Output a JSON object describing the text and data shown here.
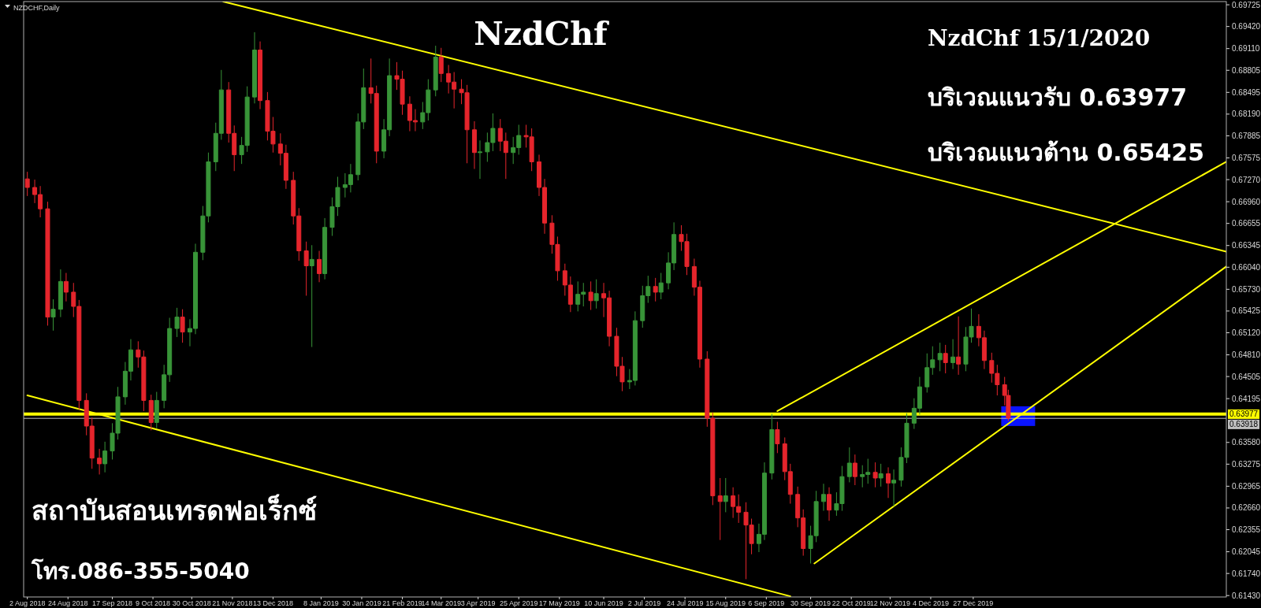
{
  "chart_data": {
    "type": "candlestick",
    "title": "NzdChf",
    "annotations": [
      "NZDCHF,Daily",
      "NzdChf 15/1/2020",
      "บริเวณแนวรับ 0.63977",
      "บริเวณแนวต้าน 0.65425",
      "สถาบันสอนเทรดฟอเร็กซ์",
      "โทร.086-355-5040"
    ],
    "xlim": [
      "2018-07-31",
      "2020-05-12"
    ],
    "ylim": [
      0.6141,
      0.6977
    ],
    "xticks": [
      {
        "value": "2018-08-02",
        "label": "2 Aug 2018"
      },
      {
        "value": "2018-08-24",
        "label": "24 Aug 2018"
      },
      {
        "value": "2018-09-17",
        "label": "17 Sep 2018"
      },
      {
        "value": "2018-10-09",
        "label": "9 Oct 2018"
      },
      {
        "value": "2018-10-30",
        "label": "30 Oct 2018"
      },
      {
        "value": "2018-11-21",
        "label": "21 Nov 2018"
      },
      {
        "value": "2018-12-13",
        "label": "13 Dec 2018"
      },
      {
        "value": "2019-01-08",
        "label": "8 Jan 2019"
      },
      {
        "value": "2019-01-30",
        "label": "30 Jan 2019"
      },
      {
        "value": "2019-02-21",
        "label": "21 Feb 2019"
      },
      {
        "value": "2019-03-14",
        "label": "14 Mar 2019"
      },
      {
        "value": "2019-04-03",
        "label": "3 Apr 2019"
      },
      {
        "value": "2019-04-25",
        "label": "25 Apr 2019"
      },
      {
        "value": "2019-05-17",
        "label": "17 May 2019"
      },
      {
        "value": "2019-06-10",
        "label": "10 Jun 2019"
      },
      {
        "value": "2019-07-02",
        "label": "2 Jul 2019"
      },
      {
        "value": "2019-07-24",
        "label": "24 Jul 2019"
      },
      {
        "value": "2019-08-15",
        "label": "15 Aug 2019"
      },
      {
        "value": "2019-09-06",
        "label": "6 Sep 2019"
      },
      {
        "value": "2019-09-30",
        "label": "30 Sep 2019"
      },
      {
        "value": "2019-10-22",
        "label": "22 Oct 2019"
      },
      {
        "value": "2019-11-12",
        "label": "12 Nov 2019"
      },
      {
        "value": "2019-12-04",
        "label": "4 Dec 2019"
      },
      {
        "value": "2019-12-27",
        "label": "27 Dec 2019"
      }
    ],
    "yticks": [
      0.69725,
      {
        "value": 0.6942,
        "label": "0.69420"
      },
      {
        "value": 0.6911,
        "label": "0.69110"
      },
      0.68805,
      0.68495,
      {
        "value": 0.6819,
        "label": "0.68190"
      },
      0.67885,
      0.67575,
      {
        "value": 0.6727,
        "label": "0.67270"
      },
      {
        "value": 0.6696,
        "label": "0.66960"
      },
      0.66655,
      0.66345,
      {
        "value": 0.6604,
        "label": "0.66040"
      },
      {
        "value": 0.6573,
        "label": "0.65730"
      },
      0.65425,
      {
        "value": 0.6512,
        "label": "0.65120"
      },
      {
        "value": 0.6481,
        "label": "0.64810"
      },
      0.64505,
      0.64195,
      {
        "value": 0.6358,
        "label": "0.63580"
      },
      0.63275,
      0.62965,
      {
        "value": 0.6266,
        "label": "0.62660"
      },
      0.62355,
      0.62045,
      {
        "value": 0.6174,
        "label": "0.61740"
      },
      {
        "value": 0.6143,
        "label": "0.61430"
      }
    ],
    "ref_lines": [
      {
        "axis": "y",
        "value": 0.63977,
        "label": "0.63977",
        "color": "#ffff00"
      },
      {
        "axis": "y",
        "value": 0.63918,
        "label": "0.63918",
        "color": "#c0c0c0"
      }
    ],
    "series": [
      {
        "type": "line",
        "color": "#ffff00",
        "x": [
          "2018-11-16",
          "2020-05-12"
        ],
        "values": [
          0.6977,
          0.6626
        ]
      },
      {
        "type": "line",
        "color": "#ffff00",
        "x": [
          "2018-08-02",
          "2019-09-19"
        ],
        "values": [
          0.6424,
          0.6142
        ]
      },
      {
        "type": "line",
        "color": "#ffff00",
        "x": [
          "2019-09-12",
          "2020-05-12"
        ],
        "values": [
          0.6402,
          0.6752
        ]
      },
      {
        "type": "line",
        "color": "#ffff00",
        "x": [
          "2019-10-02",
          "2020-05-12"
        ],
        "values": [
          0.6188,
          0.6605
        ]
      }
    ],
    "x": [
      "2018-08-02",
      "2018-08-06",
      "2018-08-09",
      "2018-08-13",
      "2018-08-16",
      "2018-08-20",
      "2018-08-23",
      "2018-08-27",
      "2018-08-30",
      "2018-09-03",
      "2018-09-06",
      "2018-09-10",
      "2018-09-13",
      "2018-09-17",
      "2018-09-20",
      "2018-09-24",
      "2018-09-27",
      "2018-10-01",
      "2018-10-04",
      "2018-10-08",
      "2018-10-11",
      "2018-10-15",
      "2018-10-18",
      "2018-10-22",
      "2018-10-25",
      "2018-10-29",
      "2018-11-01",
      "2018-11-05",
      "2018-11-08",
      "2018-11-12",
      "2018-11-15",
      "2018-11-19",
      "2018-11-22",
      "2018-11-26",
      "2018-11-29",
      "2018-12-03",
      "2018-12-06",
      "2018-12-10",
      "2018-12-13",
      "2018-12-17",
      "2018-12-20",
      "2018-12-24",
      "2018-12-27",
      "2018-12-31",
      "2019-01-03",
      "2019-01-07",
      "2019-01-10",
      "2019-01-14",
      "2019-01-17",
      "2019-01-21",
      "2019-01-24",
      "2019-01-28",
      "2019-01-31",
      "2019-02-04",
      "2019-02-07",
      "2019-02-11",
      "2019-02-14",
      "2019-02-18",
      "2019-02-21",
      "2019-02-25",
      "2019-02-28",
      "2019-03-04",
      "2019-03-07",
      "2019-03-11",
      "2019-03-14",
      "2019-03-18",
      "2019-03-21",
      "2019-03-25",
      "2019-03-28",
      "2019-04-01",
      "2019-04-04",
      "2019-04-08",
      "2019-04-11",
      "2019-04-15",
      "2019-04-18",
      "2019-04-22",
      "2019-04-25",
      "2019-04-29",
      "2019-05-02",
      "2019-05-06",
      "2019-05-09",
      "2019-05-13",
      "2019-05-16",
      "2019-05-20",
      "2019-05-23",
      "2019-05-27",
      "2019-05-30",
      "2019-06-03",
      "2019-06-06",
      "2019-06-10",
      "2019-06-13",
      "2019-06-17",
      "2019-06-20",
      "2019-06-24",
      "2019-06-27",
      "2019-07-01",
      "2019-07-04",
      "2019-07-08",
      "2019-07-11",
      "2019-07-15",
      "2019-07-18",
      "2019-07-22",
      "2019-07-25",
      "2019-07-29",
      "2019-08-01",
      "2019-08-05",
      "2019-08-08",
      "2019-08-12",
      "2019-08-15",
      "2019-08-19",
      "2019-08-22",
      "2019-08-26",
      "2019-08-29",
      "2019-09-02",
      "2019-09-05",
      "2019-09-09",
      "2019-09-12",
      "2019-09-16",
      "2019-09-19",
      "2019-09-23",
      "2019-09-26",
      "2019-09-30",
      "2019-10-03",
      "2019-10-07",
      "2019-10-10",
      "2019-10-14",
      "2019-10-17",
      "2019-10-21",
      "2019-10-24",
      "2019-10-28",
      "2019-10-31",
      "2019-11-04",
      "2019-11-07",
      "2019-11-11",
      "2019-11-14",
      "2019-11-18",
      "2019-11-21",
      "2019-11-25",
      "2019-11-28",
      "2019-12-02",
      "2019-12-05",
      "2019-12-09",
      "2019-12-12",
      "2019-12-16",
      "2019-12-19",
      "2019-12-23",
      "2019-12-26",
      "2019-12-30",
      "2020-01-02",
      "2020-01-06",
      "2020-01-09",
      "2020-01-13",
      "2020-01-15"
    ],
    "ohlc": [
      [
        0.6728,
        0.6738,
        0.6704,
        0.6716
      ],
      [
        0.6716,
        0.6727,
        0.6694,
        0.6706
      ],
      [
        0.6706,
        0.6718,
        0.6674,
        0.6686
      ],
      [
        0.6686,
        0.6696,
        0.6522,
        0.6534
      ],
      [
        0.6534,
        0.6559,
        0.6515,
        0.6545
      ],
      [
        0.6545,
        0.6601,
        0.6534,
        0.6584
      ],
      [
        0.6584,
        0.6596,
        0.6556,
        0.6569
      ],
      [
        0.6569,
        0.6582,
        0.6534,
        0.6549
      ],
      [
        0.6549,
        0.6558,
        0.6404,
        0.6417
      ],
      [
        0.6417,
        0.6427,
        0.6368,
        0.6381
      ],
      [
        0.6381,
        0.6393,
        0.6321,
        0.6336
      ],
      [
        0.6336,
        0.6349,
        0.6313,
        0.6328
      ],
      [
        0.6328,
        0.6359,
        0.6316,
        0.6346
      ],
      [
        0.6346,
        0.6385,
        0.6334,
        0.6371
      ],
      [
        0.6371,
        0.6436,
        0.6362,
        0.6422
      ],
      [
        0.6422,
        0.6471,
        0.6411,
        0.6458
      ],
      [
        0.6458,
        0.6503,
        0.6445,
        0.6488
      ],
      [
        0.6488,
        0.65,
        0.6463,
        0.6478
      ],
      [
        0.6478,
        0.6487,
        0.6402,
        0.6417
      ],
      [
        0.6417,
        0.6425,
        0.6375,
        0.6386
      ],
      [
        0.6386,
        0.6429,
        0.6378,
        0.6417
      ],
      [
        0.6417,
        0.6467,
        0.6406,
        0.6453
      ],
      [
        0.6453,
        0.6533,
        0.6443,
        0.6518
      ],
      [
        0.6518,
        0.6547,
        0.6506,
        0.6534
      ],
      [
        0.6534,
        0.6545,
        0.6498,
        0.6513
      ],
      [
        0.6513,
        0.6531,
        0.6493,
        0.6518
      ],
      [
        0.6518,
        0.6637,
        0.651,
        0.6625
      ],
      [
        0.6625,
        0.669,
        0.6614,
        0.6676
      ],
      [
        0.6676,
        0.6765,
        0.6667,
        0.6752
      ],
      [
        0.6752,
        0.6807,
        0.6739,
        0.6792
      ],
      [
        0.6792,
        0.6881,
        0.6783,
        0.6853
      ],
      [
        0.6853,
        0.6864,
        0.6779,
        0.6792
      ],
      [
        0.6792,
        0.6803,
        0.6739,
        0.6762
      ],
      [
        0.6762,
        0.6787,
        0.6749,
        0.6775
      ],
      [
        0.6775,
        0.6858,
        0.6766,
        0.6843
      ],
      [
        0.6843,
        0.6934,
        0.6834,
        0.6909
      ],
      [
        0.6909,
        0.6921,
        0.6826,
        0.6838
      ],
      [
        0.6838,
        0.685,
        0.6782,
        0.6795
      ],
      [
        0.6795,
        0.6815,
        0.6765,
        0.6777
      ],
      [
        0.6777,
        0.6792,
        0.6747,
        0.6764
      ],
      [
        0.6764,
        0.6776,
        0.6714,
        0.6726
      ],
      [
        0.6726,
        0.6738,
        0.6664,
        0.6676
      ],
      [
        0.6676,
        0.6687,
        0.6613,
        0.6627
      ],
      [
        0.6627,
        0.664,
        0.6564,
        0.6606
      ],
      [
        0.6606,
        0.6635,
        0.6492,
        0.6615
      ],
      [
        0.6615,
        0.6627,
        0.6583,
        0.6595
      ],
      [
        0.6595,
        0.6673,
        0.6587,
        0.666
      ],
      [
        0.666,
        0.6702,
        0.6648,
        0.6689
      ],
      [
        0.6689,
        0.6731,
        0.6676,
        0.6716
      ],
      [
        0.6716,
        0.6736,
        0.6702,
        0.672
      ],
      [
        0.672,
        0.6749,
        0.6709,
        0.6734
      ],
      [
        0.6734,
        0.682,
        0.6726,
        0.6808
      ],
      [
        0.6808,
        0.6883,
        0.6798,
        0.6856
      ],
      [
        0.6856,
        0.6897,
        0.6834,
        0.6848
      ],
      [
        0.6848,
        0.6859,
        0.675,
        0.6767
      ],
      [
        0.6767,
        0.6812,
        0.6757,
        0.6797
      ],
      [
        0.6797,
        0.6897,
        0.6788,
        0.6873
      ],
      [
        0.6873,
        0.6892,
        0.6853,
        0.6868
      ],
      [
        0.6868,
        0.688,
        0.6818,
        0.6833
      ],
      [
        0.6833,
        0.6844,
        0.6795,
        0.681
      ],
      [
        0.681,
        0.6826,
        0.6795,
        0.6808
      ],
      [
        0.6808,
        0.6836,
        0.6798,
        0.6821
      ],
      [
        0.6821,
        0.6868,
        0.681,
        0.6853
      ],
      [
        0.6853,
        0.6915,
        0.6844,
        0.6899
      ],
      [
        0.6899,
        0.6912,
        0.6864,
        0.6876
      ],
      [
        0.6876,
        0.6888,
        0.6848,
        0.6864
      ],
      [
        0.6864,
        0.6878,
        0.6827,
        0.6854
      ],
      [
        0.6854,
        0.6868,
        0.6833,
        0.6849
      ],
      [
        0.6849,
        0.686,
        0.675,
        0.6797
      ],
      [
        0.6797,
        0.6809,
        0.6742,
        0.6765
      ],
      [
        0.6765,
        0.6782,
        0.6728,
        0.6766
      ],
      [
        0.6766,
        0.6793,
        0.6752,
        0.6779
      ],
      [
        0.6779,
        0.682,
        0.6767,
        0.6799
      ],
      [
        0.6799,
        0.6812,
        0.6767,
        0.6781
      ],
      [
        0.6781,
        0.6793,
        0.6728,
        0.6765
      ],
      [
        0.6765,
        0.6787,
        0.6749,
        0.6772
      ],
      [
        0.6772,
        0.6804,
        0.6762,
        0.6789
      ],
      [
        0.6789,
        0.6804,
        0.6772,
        0.6787
      ],
      [
        0.6787,
        0.6799,
        0.6739,
        0.6752
      ],
      [
        0.6752,
        0.6762,
        0.6704,
        0.6716
      ],
      [
        0.6716,
        0.6728,
        0.6651,
        0.6666
      ],
      [
        0.6666,
        0.6677,
        0.6623,
        0.6636
      ],
      [
        0.6636,
        0.6647,
        0.6585,
        0.6599
      ],
      [
        0.6599,
        0.6609,
        0.6564,
        0.6579
      ],
      [
        0.6579,
        0.6591,
        0.6541,
        0.6552
      ],
      [
        0.6552,
        0.6584,
        0.6542,
        0.6566
      ],
      [
        0.6566,
        0.6582,
        0.6549,
        0.6569
      ],
      [
        0.6569,
        0.6584,
        0.6544,
        0.6557
      ],
      [
        0.6557,
        0.6587,
        0.6546,
        0.6567
      ],
      [
        0.6567,
        0.6582,
        0.6534,
        0.6561
      ],
      [
        0.6561,
        0.6571,
        0.6493,
        0.6507
      ],
      [
        0.6507,
        0.6519,
        0.6451,
        0.6465
      ],
      [
        0.6465,
        0.6478,
        0.643,
        0.6443
      ],
      [
        0.6443,
        0.6461,
        0.6433,
        0.6445
      ],
      [
        0.6445,
        0.6542,
        0.6438,
        0.6529
      ],
      [
        0.6529,
        0.6578,
        0.6519,
        0.6564
      ],
      [
        0.6564,
        0.6592,
        0.6554,
        0.6577
      ],
      [
        0.6577,
        0.6589,
        0.6556,
        0.6569
      ],
      [
        0.6569,
        0.6596,
        0.6559,
        0.6582
      ],
      [
        0.6582,
        0.6625,
        0.6573,
        0.661
      ],
      [
        0.661,
        0.6667,
        0.66,
        0.665
      ],
      [
        0.665,
        0.6663,
        0.6627,
        0.664
      ],
      [
        0.664,
        0.6651,
        0.6593,
        0.6605
      ],
      [
        0.6605,
        0.6616,
        0.6564,
        0.6576
      ],
      [
        0.6576,
        0.6585,
        0.6463,
        0.6475
      ],
      [
        0.6475,
        0.6486,
        0.638,
        0.6392
      ],
      [
        0.6392,
        0.64,
        0.627,
        0.6283
      ],
      [
        0.6283,
        0.6308,
        0.6221,
        0.6275
      ],
      [
        0.6275,
        0.6308,
        0.626,
        0.6283
      ],
      [
        0.6283,
        0.6295,
        0.6252,
        0.6268
      ],
      [
        0.6268,
        0.6285,
        0.6245,
        0.626
      ],
      [
        0.626,
        0.6274,
        0.6166,
        0.6242
      ],
      [
        0.6242,
        0.6251,
        0.6201,
        0.6216
      ],
      [
        0.6216,
        0.6244,
        0.6204,
        0.6229
      ],
      [
        0.6229,
        0.633,
        0.6221,
        0.6315
      ],
      [
        0.6315,
        0.6398,
        0.6306,
        0.6376
      ],
      [
        0.6376,
        0.6387,
        0.6343,
        0.6356
      ],
      [
        0.6356,
        0.6365,
        0.6305,
        0.6317
      ],
      [
        0.6317,
        0.6328,
        0.6272,
        0.6285
      ],
      [
        0.6285,
        0.6296,
        0.6239,
        0.6252
      ],
      [
        0.6252,
        0.6264,
        0.6199,
        0.6209
      ],
      [
        0.6209,
        0.6241,
        0.6188,
        0.6227
      ],
      [
        0.6227,
        0.629,
        0.6218,
        0.6275
      ],
      [
        0.6275,
        0.63,
        0.6262,
        0.6285
      ],
      [
        0.6285,
        0.6295,
        0.6248,
        0.6263
      ],
      [
        0.6263,
        0.6288,
        0.6255,
        0.6272
      ],
      [
        0.6272,
        0.6325,
        0.6262,
        0.631
      ],
      [
        0.631,
        0.6351,
        0.6302,
        0.6329
      ],
      [
        0.6329,
        0.6341,
        0.6298,
        0.631
      ],
      [
        0.631,
        0.6326,
        0.6295,
        0.6313
      ],
      [
        0.6313,
        0.6335,
        0.63,
        0.6316
      ],
      [
        0.6316,
        0.633,
        0.6295,
        0.6308
      ],
      [
        0.6308,
        0.6328,
        0.6296,
        0.6314
      ],
      [
        0.6314,
        0.6323,
        0.628,
        0.6301
      ],
      [
        0.6301,
        0.632,
        0.6268,
        0.6305
      ],
      [
        0.6305,
        0.6351,
        0.6296,
        0.6337
      ],
      [
        0.6337,
        0.6399,
        0.6329,
        0.6385
      ],
      [
        0.6385,
        0.642,
        0.6377,
        0.6406
      ],
      [
        0.6406,
        0.645,
        0.6397,
        0.6436
      ],
      [
        0.6436,
        0.6483,
        0.6428,
        0.6463
      ],
      [
        0.6463,
        0.6493,
        0.6453,
        0.6474
      ],
      [
        0.6474,
        0.6498,
        0.6458,
        0.6483
      ],
      [
        0.6483,
        0.6495,
        0.6455,
        0.647
      ],
      [
        0.647,
        0.6503,
        0.6461,
        0.6478
      ],
      [
        0.6478,
        0.6535,
        0.6453,
        0.6468
      ],
      [
        0.6468,
        0.652,
        0.6458,
        0.6506
      ],
      [
        0.6506,
        0.6546,
        0.6498,
        0.6521
      ],
      [
        0.6521,
        0.6538,
        0.6493,
        0.6505
      ],
      [
        0.6505,
        0.6515,
        0.6461,
        0.6473
      ],
      [
        0.6473,
        0.6484,
        0.6442,
        0.6455
      ],
      [
        0.6455,
        0.6467,
        0.6424,
        0.6439
      ],
      [
        0.6439,
        0.645,
        0.641,
        0.6424
      ],
      [
        0.6424,
        0.6432,
        0.6388,
        0.6392
      ]
    ],
    "colors": [
      "#e5252c",
      "#e5252c",
      "#e5252c",
      "#e5252c",
      "#389438",
      "#389438",
      "#e5252c",
      "#e5252c",
      "#e5252c",
      "#e5252c",
      "#e5252c",
      "#e5252c",
      "#389438",
      "#389438",
      "#389438",
      "#389438",
      "#389438",
      "#e5252c",
      "#e5252c",
      "#e5252c",
      "#389438",
      "#389438",
      "#389438",
      "#389438",
      "#e5252c",
      "#389438",
      "#389438",
      "#389438",
      "#389438",
      "#389438",
      "#389438",
      "#e5252c",
      "#e5252c",
      "#389438",
      "#389438",
      "#389438",
      "#e5252c",
      "#e5252c",
      "#e5252c",
      "#e5252c",
      "#e5252c",
      "#e5252c",
      "#e5252c",
      "#e5252c",
      "#389438",
      "#e5252c",
      "#389438",
      "#389438",
      "#389438",
      "#389438",
      "#389438",
      "#389438",
      "#389438",
      "#e5252c",
      "#e5252c",
      "#389438",
      "#389438",
      "#e5252c",
      "#e5252c",
      "#e5252c",
      "#e5252c",
      "#389438",
      "#389438",
      "#389438",
      "#e5252c",
      "#e5252c",
      "#e5252c",
      "#e5252c",
      "#e5252c",
      "#e5252c",
      "#389438",
      "#389438",
      "#389438",
      "#e5252c",
      "#e5252c",
      "#389438",
      "#389438",
      "#e5252c",
      "#e5252c",
      "#e5252c",
      "#e5252c",
      "#e5252c",
      "#e5252c",
      "#e5252c",
      "#e5252c",
      "#389438",
      "#389438",
      "#e5252c",
      "#389438",
      "#e5252c",
      "#e5252c",
      "#e5252c",
      "#e5252c",
      "#389438",
      "#389438",
      "#389438",
      "#389438",
      "#e5252c",
      "#389438",
      "#389438",
      "#389438",
      "#e5252c",
      "#e5252c",
      "#e5252c",
      "#e5252c",
      "#e5252c",
      "#e5252c",
      "#e5252c",
      "#389438",
      "#e5252c",
      "#e5252c",
      "#e5252c",
      "#e5252c",
      "#389438",
      "#389438",
      "#389438",
      "#e5252c",
      "#e5252c",
      "#e5252c",
      "#e5252c",
      "#e5252c",
      "#389438",
      "#389438",
      "#389438",
      "#e5252c",
      "#389438",
      "#389438",
      "#389438",
      "#e5252c",
      "#389438",
      "#389438",
      "#e5252c",
      "#389438",
      "#e5252c",
      "#389438",
      "#389438",
      "#389438",
      "#389438",
      "#389438",
      "#389438",
      "#389438",
      "#389438",
      "#e5252c",
      "#389438",
      "#e5252c",
      "#389438",
      "#389438",
      "#e5252c",
      "#e5252c",
      "#e5252c",
      "#e5252c",
      "#e5252c",
      "#e5252c"
    ]
  }
}
